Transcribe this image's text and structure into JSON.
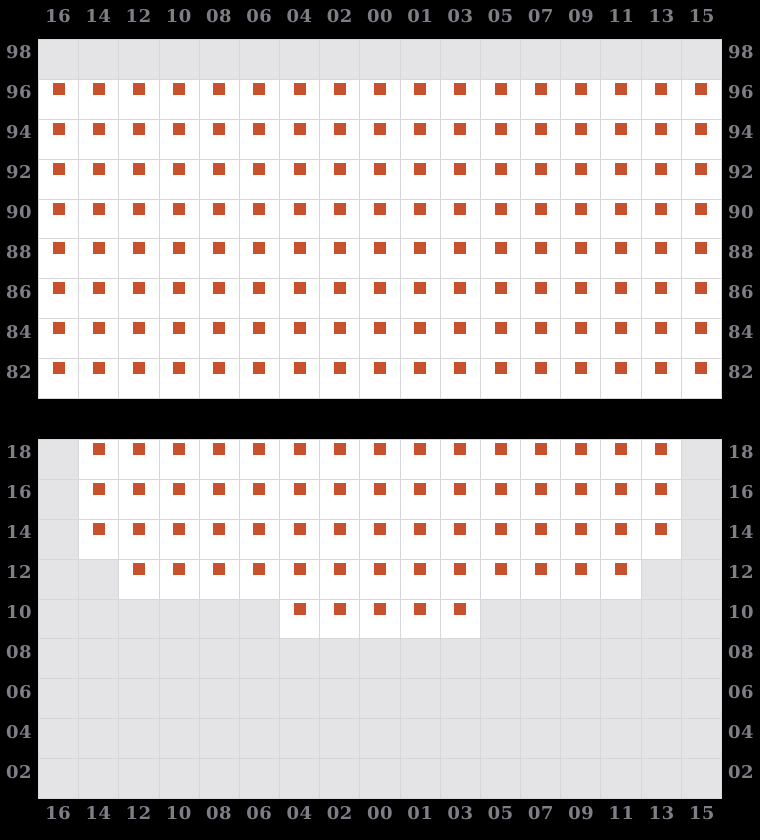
{
  "chart_data": {
    "type": "heatmap",
    "title": "",
    "legend_position": "none",
    "grid": true,
    "columns": [
      "16",
      "14",
      "12",
      "10",
      "08",
      "06",
      "04",
      "02",
      "00",
      "01",
      "03",
      "05",
      "07",
      "09",
      "11",
      "13",
      "15"
    ],
    "column_axis_shown_top": true,
    "column_axis_shown_bottom": true,
    "cell_states": {
      "D": "marked cell: white cell containing orange square marker",
      ".": "empty cell: gray cell, no marker"
    },
    "panels": [
      {
        "name": "upper-panel",
        "row_labels": [
          "98",
          "96",
          "94",
          "92",
          "90",
          "88",
          "86",
          "84",
          "82"
        ],
        "row_labels_shown_left": true,
        "row_labels_shown_right": true,
        "pattern": [
          ".................",
          "DDDDDDDDDDDDDDDDD",
          "DDDDDDDDDDDDDDDDD",
          "DDDDDDDDDDDDDDDDD",
          "DDDDDDDDDDDDDDDDD",
          "DDDDDDDDDDDDDDDDD",
          "DDDDDDDDDDDDDDDDD",
          "DDDDDDDDDDDDDDDDD",
          "DDDDDDDDDDDDDDDDD"
        ]
      },
      {
        "name": "lower-panel",
        "row_labels": [
          "18",
          "16",
          "14",
          "12",
          "10",
          "08",
          "06",
          "04",
          "02"
        ],
        "row_labels_shown_left": true,
        "row_labels_shown_right": true,
        "pattern": [
          ".DDDDDDDDDDDDDDD.",
          ".DDDDDDDDDDDDDDD.",
          ".DDDDDDDDDDDDDDD.",
          "..DDDDDDDDDDDDD..",
          "......DDDDD......",
          ".................",
          ".................",
          ".................",
          "................."
        ]
      }
    ]
  },
  "colors": {
    "background": "#000000",
    "dot": "#c8512d",
    "cell_fill": "#ffffff",
    "cell_empty": "#e4e4e6",
    "gridline": "#d7d7da",
    "label": "#7e7e87"
  }
}
